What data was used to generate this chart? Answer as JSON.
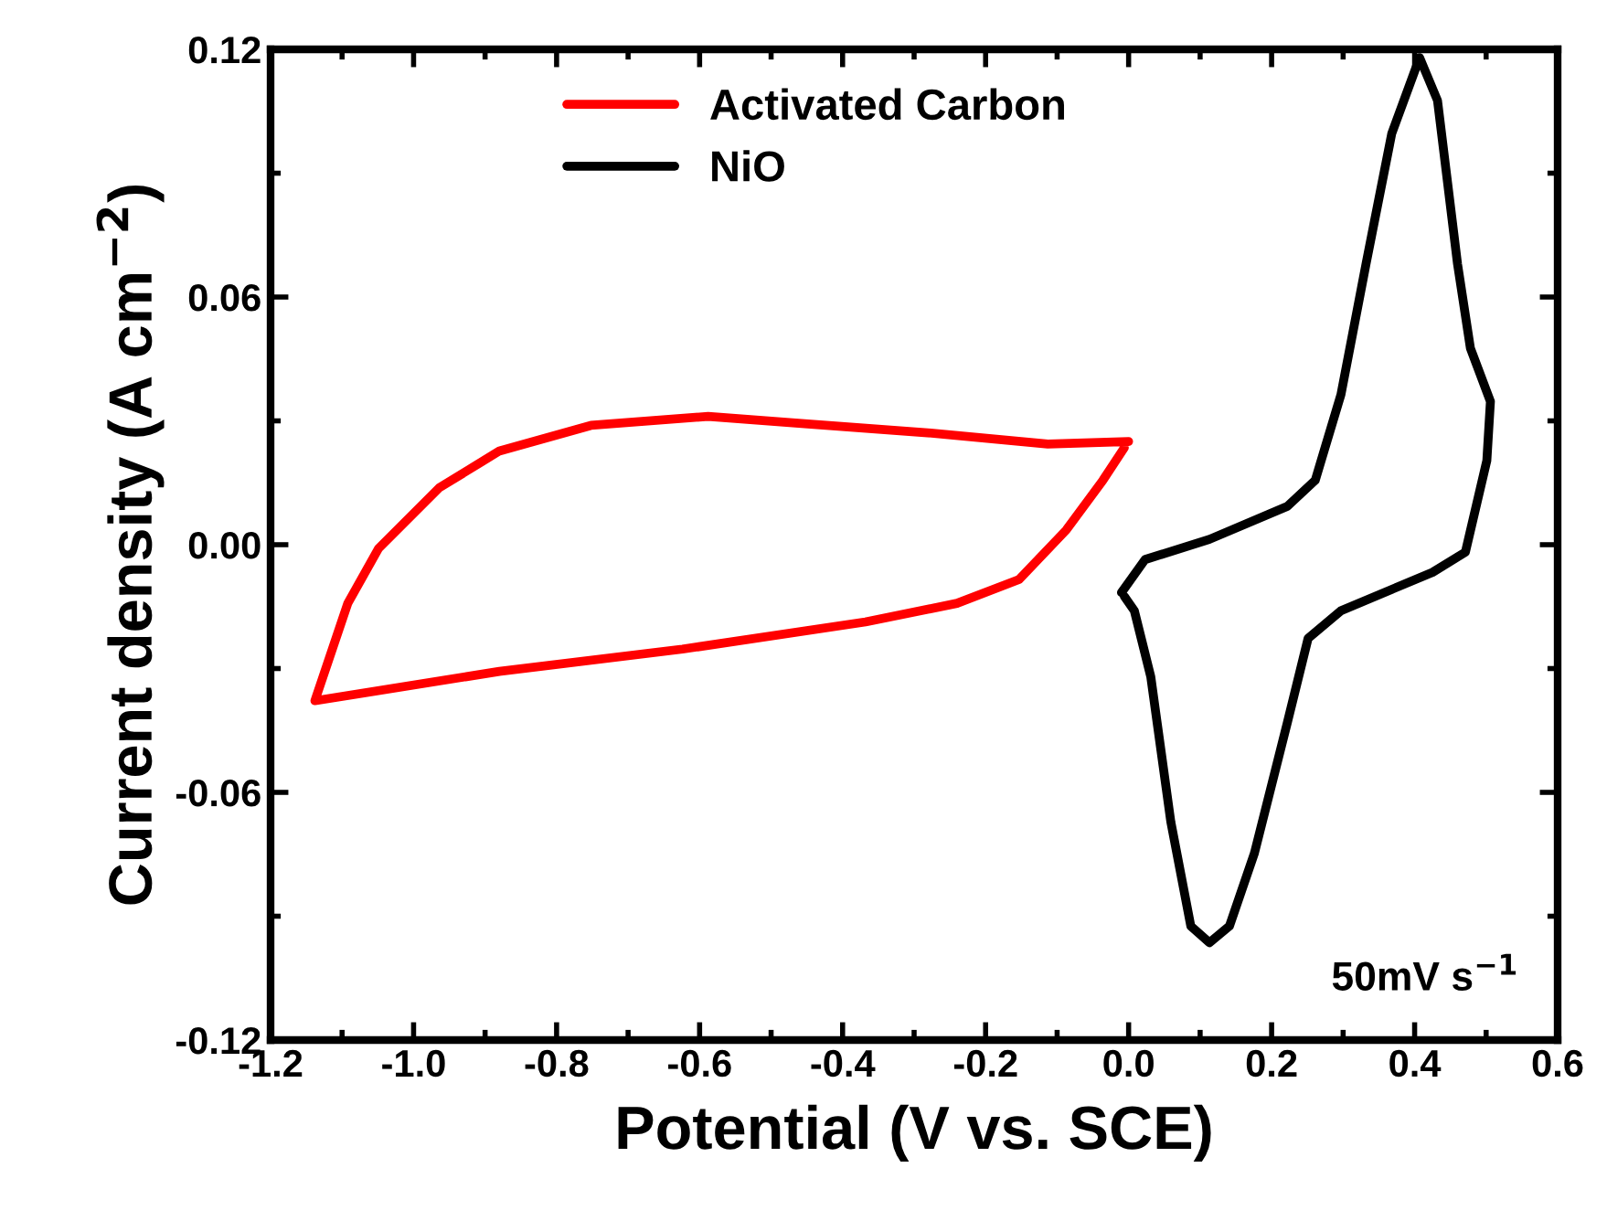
{
  "chart_data": {
    "type": "line",
    "xlabel": "Potential (V vs. SCE)",
    "ylabel": "Current density (A cm$^{−2}$)",
    "xlim": [
      -1.2,
      0.6
    ],
    "xticks": [
      -1.2,
      {
        "value": -1.0,
        "label": "-1.0"
      },
      -0.8,
      -0.6,
      -0.4,
      -0.2,
      {
        "value": 0.0,
        "label": "0.0"
      },
      0.2,
      0.4,
      0.6
    ],
    "ylim": [
      -0.12,
      0.12
    ],
    "yticks": [
      -0.12,
      -0.06,
      {
        "value": 0.0,
        "label": "0.00"
      },
      0.06,
      0.12
    ],
    "legend": "top left",
    "grid": false,
    "marker": "none",
    "line_style": "solid",
    "annotations": [
      "50mV s$^{−1}$"
    ],
    "series": [
      {
        "name": "Activated Carbon",
        "color": "#ff0000",
        "x": [
          0.0,
          -0.113,
          -0.281,
          -0.453,
          -0.588,
          -0.752,
          -0.88,
          -0.964,
          -1.049,
          -1.092,
          -1.138,
          -0.88,
          -0.624,
          -0.368,
          -0.24,
          -0.153,
          -0.087,
          -0.036,
          -0.006
        ],
        "values": [
          0.025,
          0.0244,
          0.0271,
          0.0293,
          0.0311,
          0.0289,
          0.0227,
          0.0138,
          -0.0009,
          -0.0142,
          -0.0378,
          -0.0307,
          -0.0253,
          -0.0187,
          -0.0142,
          -0.0084,
          0.0036,
          0.0156,
          0.0235
        ]
      },
      {
        "name": "NiO",
        "color": "#000000",
        "x": [
          -0.01,
          0.023,
          0.113,
          0.222,
          0.261,
          0.297,
          0.332,
          0.368,
          0.407,
          0.432,
          0.46,
          0.478,
          0.506,
          0.501,
          0.471,
          0.425,
          0.297,
          0.251,
          0.222,
          0.176,
          0.141,
          0.113,
          0.087,
          0.059,
          0.031,
          0.008,
          -0.006
        ],
        "values": [
          -0.0116,
          -0.0036,
          0.0013,
          0.0093,
          0.0156,
          0.0364,
          0.068,
          0.0996,
          0.118,
          0.1076,
          0.068,
          0.0476,
          0.0347,
          0.0204,
          -0.0018,
          -0.0067,
          -0.016,
          -0.0227,
          -0.0431,
          -0.0747,
          -0.0924,
          -0.0964,
          -0.0924,
          -0.0671,
          -0.032,
          -0.016,
          -0.0125
        ]
      }
    ]
  }
}
